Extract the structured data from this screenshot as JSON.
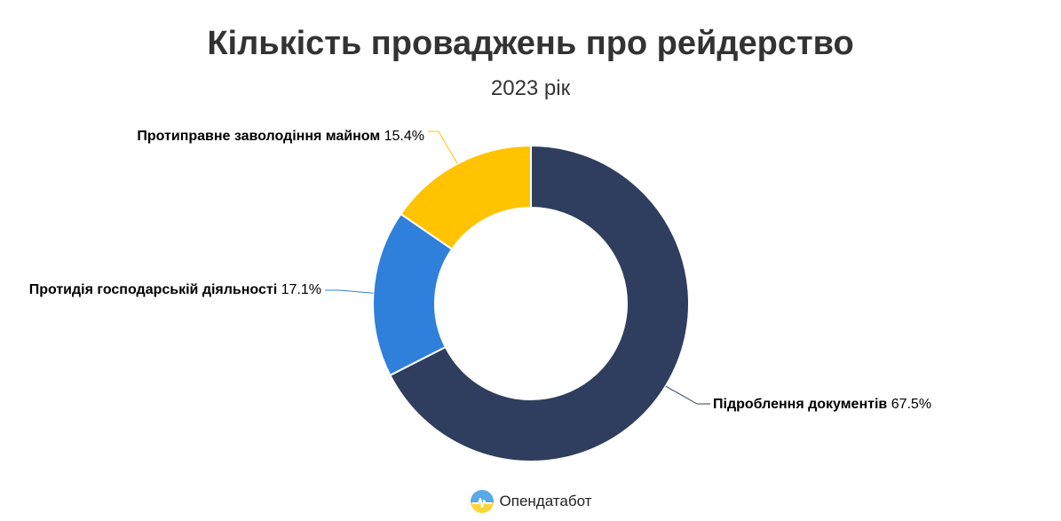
{
  "chart_data": {
    "type": "pie",
    "variant": "donut",
    "title": "Кількість проваджень про рейдерство",
    "subtitle": "2023 рік",
    "slices": [
      {
        "label": "Підроблення документів",
        "value": 67.5,
        "value_label": "67.5%",
        "color": "#2f3e5f"
      },
      {
        "label": "Протидія господарській діяльності",
        "value": 17.1,
        "value_label": "17.1%",
        "color": "#2e80db"
      },
      {
        "label": "Протиправне заволодіння майном",
        "value": 15.4,
        "value_label": "15.4%",
        "color": "#ffc300"
      }
    ]
  },
  "footer": {
    "source_label": "Опендатабот",
    "logo_icon": "opendatabot-logo-icon"
  }
}
